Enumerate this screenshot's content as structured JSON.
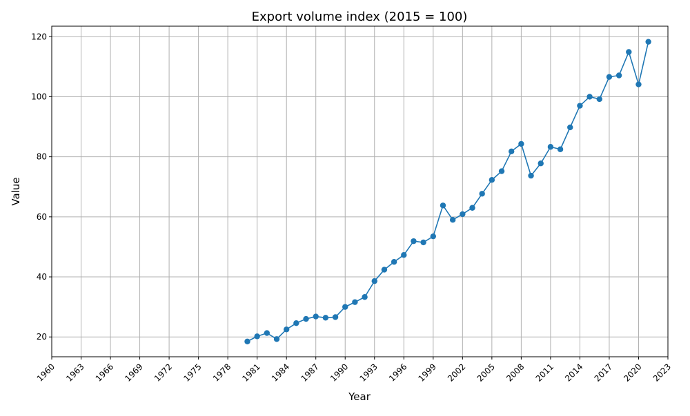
{
  "chart_data": {
    "type": "line",
    "title": "Export volume index (2015 = 100)",
    "xlabel": "Year",
    "ylabel": "Value",
    "xlim": [
      1960,
      2023
    ],
    "ylim": [
      13.4,
      123.5
    ],
    "x_ticks": [
      1960,
      1963,
      1966,
      1969,
      1972,
      1975,
      1978,
      1981,
      1984,
      1987,
      1990,
      1993,
      1996,
      1999,
      2002,
      2005,
      2008,
      2011,
      2014,
      2017,
      2020,
      2023
    ],
    "y_ticks": [
      20,
      40,
      60,
      80,
      100,
      120
    ],
    "grid": true,
    "marker": "circle",
    "series": [
      {
        "color": "#1f77b4",
        "x": [
          1980,
          1981,
          1982,
          1983,
          1984,
          1985,
          1986,
          1987,
          1988,
          1989,
          1990,
          1991,
          1992,
          1993,
          1994,
          1995,
          1996,
          1997,
          1998,
          1999,
          2000,
          2001,
          2002,
          2003,
          2004,
          2005,
          2006,
          2007,
          2008,
          2009,
          2010,
          2011,
          2012,
          2013,
          2014,
          2015,
          2016,
          2017,
          2018,
          2019,
          2020,
          2021
        ],
        "y": [
          18.5,
          20.2,
          21.3,
          19.3,
          22.5,
          24.6,
          26.0,
          26.8,
          26.4,
          26.6,
          30.0,
          31.6,
          33.3,
          38.6,
          42.4,
          45.0,
          47.3,
          51.9,
          51.5,
          53.5,
          63.8,
          59.0,
          60.9,
          63.0,
          67.7,
          72.3,
          75.2,
          81.8,
          84.3,
          73.7,
          77.8,
          83.3,
          82.5,
          89.8,
          97.0,
          100.0,
          99.2,
          106.6,
          107.1,
          114.9,
          104.1,
          118.3
        ]
      }
    ]
  }
}
